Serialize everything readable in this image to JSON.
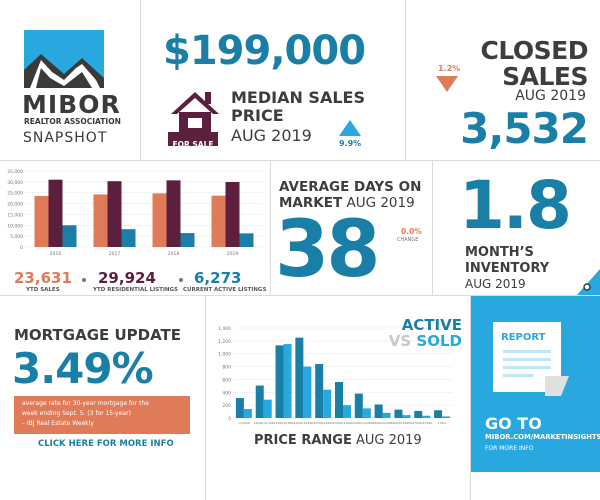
{
  "header": {
    "logo_name": "MIBOR",
    "logo_sub": "REALTOR ASSOCIATION",
    "snapshot": "SNAPSHOT"
  },
  "median": {
    "price": "$199,000",
    "line1": "MEDIAN SALES",
    "line2": "PRICE",
    "period": "AUG 2019",
    "badge": "FOR SALE",
    "change": "9.9%"
  },
  "closed": {
    "line1": "CLOSED",
    "line2": "SALES",
    "period": "AUG 2019",
    "value": "3,532",
    "change": "1.2%"
  },
  "ytd": {
    "stats": [
      {
        "value": "23,631",
        "label": "YTD SALES"
      },
      {
        "value": "29,924",
        "label": "YTD RESIDENTIAL LISTINGS"
      },
      {
        "value": "6,273",
        "label": "CURRENT ACTIVE LISTINGS"
      }
    ],
    "colors": {
      "sales": "#e07b5a",
      "listings": "#5c1f3d",
      "active": "#1a7fa6"
    }
  },
  "dom": {
    "line1": "AVERAGE DAYS ON",
    "line2a": "MARKET",
    "period": "AUG 2019",
    "value": "38",
    "change": "0.0%",
    "change_label": "CHANGE"
  },
  "inventory": {
    "value": "1.8",
    "line1": "MONTH’S",
    "line2": "INVENTORY",
    "period": "AUG 2019"
  },
  "mortgage": {
    "title": "MORTGAGE UPDATE",
    "rate": "3.49%",
    "desc1": "average rate for 30-year mortgage for the",
    "desc2": "week ending Sept. 5. (3 for 15-year)",
    "desc3": "– IBJ Real Estate Weekly",
    "link": "CLICK HERE FOR MORE INFO"
  },
  "price_range": {
    "active": "ACTIVE",
    "vs": "VS",
    "sold": "SOLD",
    "title": "PRICE RANGE",
    "period": "AUG 2019"
  },
  "report": {
    "paper": "REPORT",
    "go": "GO TO",
    "url": "MIBOR.COM/MARKETINSIGHTS",
    "more": "FOR MORE INFO"
  },
  "chart_data": [
    {
      "type": "bar",
      "categories": [
        "2016",
        "2017",
        "2018",
        "2019"
      ],
      "series": [
        {
          "values": [
            23500,
            24200,
            24700,
            23631
          ]
        },
        {
          "values": [
            31000,
            30300,
            30700,
            29924
          ]
        },
        {
          "values": [
            10000,
            8200,
            6400,
            6273
          ]
        }
      ],
      "yticks": [
        "35,000",
        "30,000",
        "25,000",
        "20,000",
        "15,000",
        "10,000",
        "5,000",
        "0"
      ],
      "ylim": [
        0,
        35000
      ]
    },
    {
      "type": "bar",
      "categories": [
        "<$100K",
        "$100K-$149K",
        "$150K-$199K",
        "$200K-$249K",
        "$250K-$299K",
        "$300K-$399K",
        "$400K-$499K",
        "$500K-$599K",
        "$600K-$699K",
        "$700K-$799K",
        "1.0M+"
      ],
      "series": [
        {
          "values": [
            310,
            505,
            1130,
            1250,
            840,
            560,
            380,
            210,
            130,
            110,
            120
          ]
        },
        {
          "values": [
            140,
            285,
            1150,
            800,
            440,
            200,
            150,
            80,
            45,
            35,
            25
          ]
        }
      ],
      "yticks": [
        "1,400",
        "1,200",
        "1,000",
        "800",
        "600",
        "400",
        "200",
        "0"
      ],
      "ylim": [
        0,
        1400
      ],
      "colors": {
        "active": "#1a7fa6",
        "sold": "#29a8e0"
      }
    }
  ]
}
